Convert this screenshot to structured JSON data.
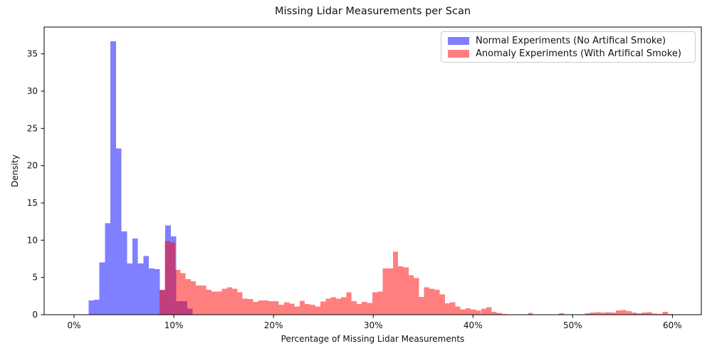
{
  "chart_data": {
    "type": "bar",
    "subtype": "overlapping-histogram",
    "title": "Missing Lidar Measurements per Scan",
    "xlabel": "Percentage of Missing Lidar Measurements",
    "ylabel": "Density",
    "x_tick_labels": [
      "0%",
      "10%",
      "20%",
      "30%",
      "40%",
      "50%",
      "60%"
    ],
    "x_tick_values": [
      0,
      10,
      20,
      30,
      40,
      50,
      60
    ],
    "y_tick_labels": [
      "0",
      "5",
      "10",
      "15",
      "20",
      "25",
      "30",
      "35"
    ],
    "y_tick_values": [
      0,
      5,
      10,
      15,
      20,
      25,
      30,
      35
    ],
    "xlim": [
      -3.0,
      62.9
    ],
    "ylim": [
      0,
      38.6
    ],
    "grid": false,
    "legend_position": "upper right",
    "legend": [
      {
        "label": "Normal Experiments (No Artifical Smoke)",
        "color": "#7f7fff"
      },
      {
        "label": "Anomaly Experiments (With Artifical Smoke)",
        "color": "#ff7f7f"
      }
    ],
    "series": [
      {
        "id": "normal",
        "name": "Normal Experiments (No Artifical Smoke)",
        "fill": "rgba(0,0,255,0.5)",
        "units": "percent, density",
        "start": 1.45,
        "width": 0.55,
        "density": [
          1.9,
          2.0,
          7.0,
          12.3,
          36.7,
          22.3,
          11.2,
          6.9,
          10.2,
          6.9,
          7.9,
          6.2,
          6.1,
          3.3,
          12.0,
          10.5,
          1.8,
          1.8,
          0.8
        ]
      },
      {
        "id": "anomaly",
        "name": "Anomaly Experiments (With Artifical Smoke)",
        "fill": "rgba(255,0,0,0.5)",
        "units": "percent, density",
        "start": 8.58,
        "width": 0.52,
        "density": [
          3.35,
          9.9,
          9.7,
          6.0,
          5.6,
          4.8,
          4.5,
          3.9,
          3.9,
          3.35,
          3.1,
          3.1,
          3.5,
          3.7,
          3.5,
          3.0,
          2.15,
          2.1,
          1.7,
          1.9,
          1.9,
          1.8,
          1.8,
          1.35,
          1.65,
          1.5,
          1.1,
          1.85,
          1.45,
          1.35,
          1.1,
          1.75,
          2.15,
          2.35,
          2.15,
          2.35,
          3.0,
          1.8,
          1.45,
          1.7,
          1.6,
          3.0,
          3.1,
          6.2,
          6.2,
          8.45,
          6.5,
          6.35,
          5.3,
          4.9,
          2.4,
          3.7,
          3.5,
          3.35,
          2.7,
          1.55,
          1.65,
          1.1,
          0.7,
          0.85,
          0.7,
          0.57,
          0.8,
          1.0,
          0.38,
          0.23,
          0.1,
          0,
          0,
          0,
          0,
          0.23,
          0,
          0,
          0,
          0,
          0,
          0.2,
          0,
          0,
          0,
          0,
          0.2,
          0.3,
          0.35,
          0.3,
          0.35,
          0.3,
          0.55,
          0.6,
          0.5,
          0.3,
          0.2,
          0.3,
          0.33,
          0.15,
          0.1,
          0.4,
          0.1,
          0
        ]
      }
    ]
  }
}
